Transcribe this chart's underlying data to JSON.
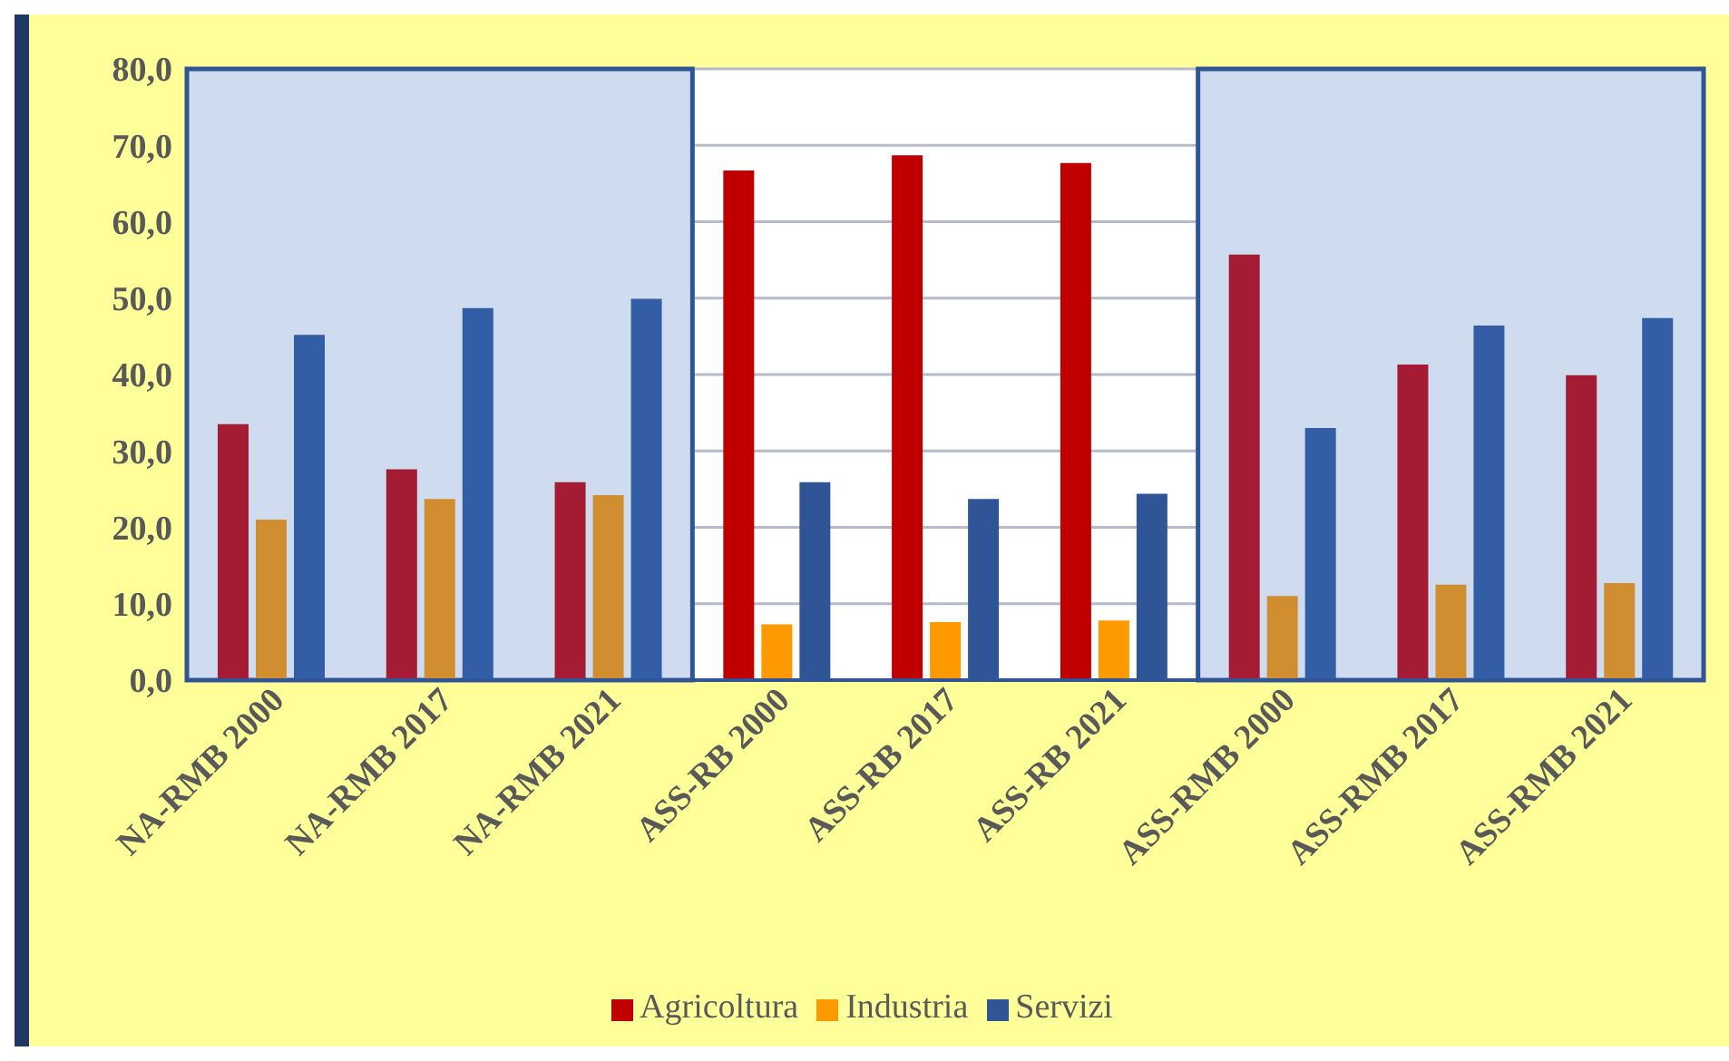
{
  "chart_data": {
    "type": "bar",
    "categories": [
      "NA-RMB 2000",
      "NA-RMB 2017",
      "NA-RMB 2021",
      "ASS-RB 2000",
      "ASS-RB 2017",
      "ASS-RB 2021",
      "ASS-RMB 2000",
      "ASS-RMB 2017",
      "ASS-RMB 2021"
    ],
    "series": [
      {
        "name": "Agricoltura",
        "color": "#c00000",
        "colors": [
          "#a31c33",
          "#a31c33",
          "#a31c33",
          "#c00000",
          "#c00000",
          "#c00000",
          "#a31c33",
          "#a31c33",
          "#a31c33"
        ],
        "values": [
          33.5,
          27.6,
          25.9,
          66.7,
          68.7,
          67.7,
          55.7,
          41.3,
          39.9
        ]
      },
      {
        "name": "Industria",
        "color": "#ff9900",
        "colors": [
          "#d08e30",
          "#d08e30",
          "#d08e30",
          "#ff9900",
          "#ff9900",
          "#ff9900",
          "#d08e30",
          "#d08e30",
          "#d08e30"
        ],
        "values": [
          21.0,
          23.7,
          24.2,
          7.3,
          7.6,
          7.8,
          11.0,
          12.5,
          12.7
        ]
      },
      {
        "name": "Servizi",
        "color": "#2f5597",
        "colors": [
          "#335da4",
          "#335da4",
          "#335da4",
          "#2f5597",
          "#2f5597",
          "#2f5597",
          "#335da4",
          "#335da4",
          "#335da4"
        ],
        "values": [
          45.2,
          48.7,
          49.9,
          25.9,
          23.7,
          24.4,
          33.0,
          46.4,
          47.4
        ]
      }
    ],
    "ylim": [
      0,
      80
    ],
    "yticks": [
      {
        "value": 0,
        "label": "0,0"
      },
      {
        "value": 10,
        "label": "10,0"
      },
      {
        "value": 20,
        "label": "20,0"
      },
      {
        "value": 30,
        "label": "30,0"
      },
      {
        "value": 40,
        "label": "40,0"
      },
      {
        "value": 50,
        "label": "50,0"
      },
      {
        "value": 60,
        "label": "60,0"
      },
      {
        "value": 70,
        "label": "70,0"
      },
      {
        "value": 80,
        "label": "80,0"
      }
    ],
    "bands": [
      {
        "axis": "x",
        "from": "NA-RMB 2000",
        "to": "NA-RMB 2021",
        "color": "#cfdcef"
      },
      {
        "axis": "x",
        "from": "ASS-RMB 2000",
        "to": "ASS-RMB 2021",
        "color": "#cfdcef"
      }
    ],
    "grid": "y",
    "legend": "bottom"
  }
}
